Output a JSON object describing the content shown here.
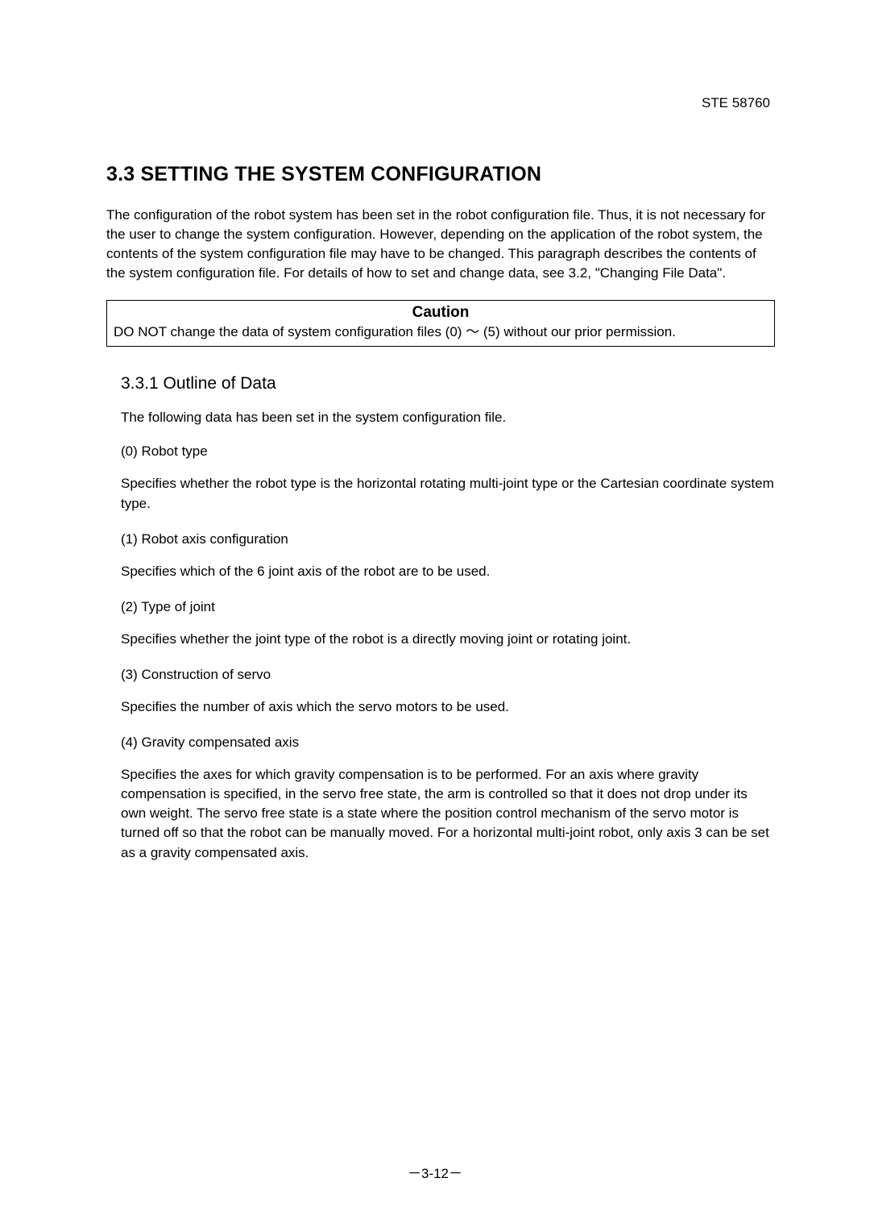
{
  "doc": {
    "header_code": "STE  58760",
    "page_number": "－3-12－"
  },
  "section": {
    "heading": "3.3    SETTING THE SYSTEM CONFIGURATION",
    "intro": "The configuration of the robot system has been set in the robot configuration file.    Thus, it is not necessary for the user to change the system configuration.    However, depending on the application of the robot system, the contents of the system configuration file may have to be changed.    This paragraph describes the contents of the system configuration file.    For details of how to set and change data, see 3.2, \"Changing File Data\"."
  },
  "caution": {
    "title": "Caution",
    "text": "DO NOT change the data of system configuration files (0) ～ (5) without our prior permission."
  },
  "subsection": {
    "heading": "3.3.1    Outline of Data",
    "intro": "The following data has been set in the system configuration file.",
    "items": [
      {
        "label": "(0)    Robot type",
        "desc": "Specifies whether the robot type is the horizontal rotating multi-joint type or the Cartesian coordinate system type."
      },
      {
        "label": "(1)    Robot axis configuration",
        "desc": "Specifies which of the 6 joint axis of the robot are to be used."
      },
      {
        "label": "(2)    Type of joint",
        "desc": "Specifies whether the joint type of the robot is a directly moving joint or rotating joint."
      },
      {
        "label": "(3)    Construction of servo",
        "desc": "Specifies the number of axis which the servo motors to be used."
      },
      {
        "label": "(4)    Gravity compensated axis",
        "desc": "Specifies the axes for which gravity compensation is to be performed.    For an axis where gravity compensation is specified, in the servo free state, the arm is controlled so that it does not drop under its own weight.    The servo free state is a state where the position control mechanism of the servo motor is turned off so that the robot can be manually moved.    For a horizontal multi-joint robot, only axis 3 can be set as a gravity compensated axis."
      }
    ]
  }
}
